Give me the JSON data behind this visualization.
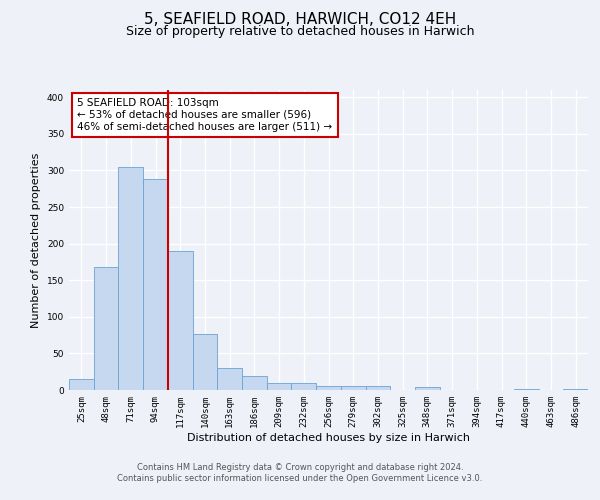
{
  "title": "5, SEAFIELD ROAD, HARWICH, CO12 4EH",
  "subtitle": "Size of property relative to detached houses in Harwich",
  "xlabel": "Distribution of detached houses by size in Harwich",
  "ylabel": "Number of detached properties",
  "bar_labels": [
    "25sqm",
    "48sqm",
    "71sqm",
    "94sqm",
    "117sqm",
    "140sqm",
    "163sqm",
    "186sqm",
    "209sqm",
    "232sqm",
    "256sqm",
    "279sqm",
    "302sqm",
    "325sqm",
    "348sqm",
    "371sqm",
    "394sqm",
    "417sqm",
    "440sqm",
    "463sqm",
    "486sqm"
  ],
  "bar_heights": [
    15,
    168,
    305,
    288,
    190,
    77,
    30,
    19,
    9,
    9,
    6,
    5,
    5,
    0,
    4,
    0,
    0,
    0,
    2,
    0,
    2
  ],
  "bar_color": "#c5d8f0",
  "bar_edge_color": "#6aa3d5",
  "vline_x": 3.5,
  "vline_color": "#cc0000",
  "annotation_title": "5 SEAFIELD ROAD: 103sqm",
  "annotation_line1": "← 53% of detached houses are smaller (596)",
  "annotation_line2": "46% of semi-detached houses are larger (511) →",
  "annotation_box_color": "#ffffff",
  "annotation_box_edge": "#cc0000",
  "ylim": [
    0,
    410
  ],
  "yticks": [
    0,
    50,
    100,
    150,
    200,
    250,
    300,
    350,
    400
  ],
  "footer_line1": "Contains HM Land Registry data © Crown copyright and database right 2024.",
  "footer_line2": "Contains public sector information licensed under the Open Government Licence v3.0.",
  "bg_color": "#eef2f8",
  "plot_bg_color": "#eef2f8",
  "title_fontsize": 11,
  "subtitle_fontsize": 9,
  "label_fontsize": 8,
  "tick_fontsize": 6.5,
  "footer_fontsize": 6.0,
  "ann_fontsize": 7.5
}
